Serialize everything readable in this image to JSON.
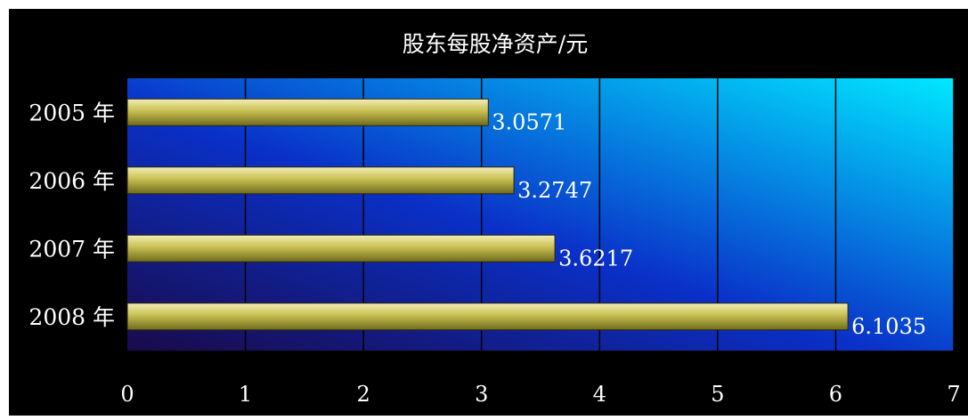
{
  "chart_data": {
    "type": "bar",
    "orientation": "horizontal",
    "title": "股东每股净资产/元",
    "categories": [
      "2005 年",
      "2006 年",
      "2007 年",
      "2008 年"
    ],
    "values": [
      3.0571,
      3.2747,
      3.6217,
      6.1035
    ],
    "value_labels": [
      "3.0571",
      "3.2747",
      "3.6217",
      "6.1035"
    ],
    "xlim": [
      0,
      7
    ],
    "x_ticks": [
      "0",
      "1",
      "2",
      "3",
      "4",
      "5",
      "6",
      "7"
    ],
    "grid": "vertical",
    "legend": "none",
    "colors": {
      "background": "#000000",
      "plot_gradient_start": "#1a0a4a",
      "plot_gradient_end": "#00e8ff",
      "bar_fill": "#c8bf50",
      "bar_highlight": "#f2edb8",
      "bar_shadow": "#6f6a1c",
      "text": "#ffffff"
    }
  }
}
